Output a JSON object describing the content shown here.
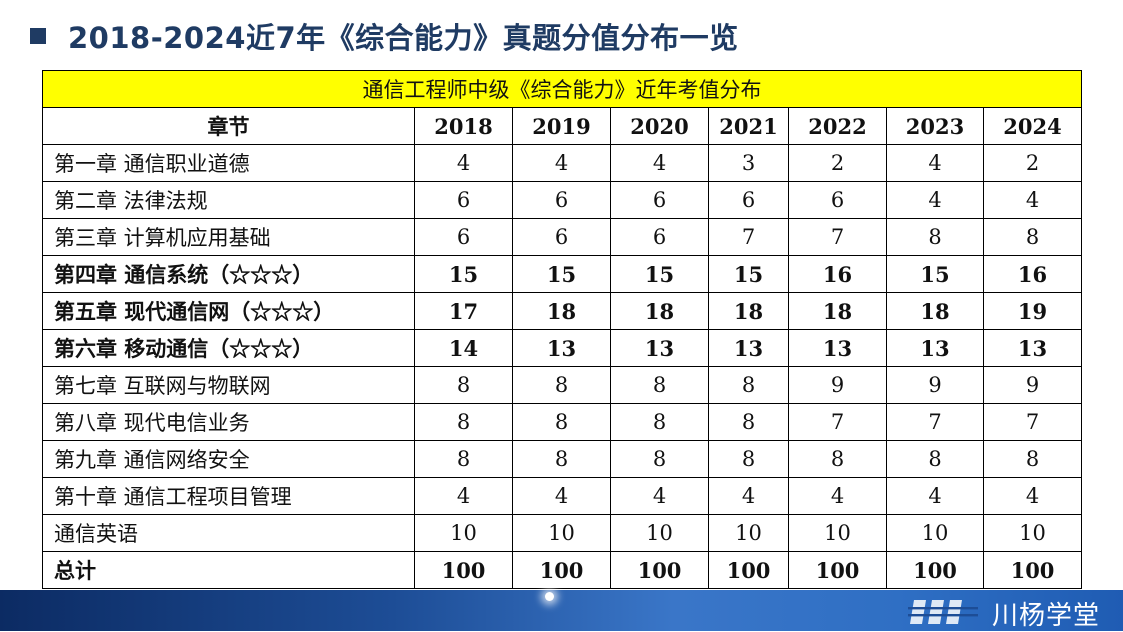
{
  "title": "2018-2024近7年《综合能力》真题分值分布一览",
  "table": {
    "caption": "通信工程师中级《综合能力》近年考值分布",
    "header": [
      "章节",
      "2018",
      "2019",
      "2020",
      "2021",
      "2022",
      "2023",
      "2024"
    ],
    "rows": [
      {
        "chapter": "第一章  通信职业道德",
        "values": [
          "4",
          "4",
          "4",
          "3",
          "2",
          "4",
          "2"
        ],
        "bold": false
      },
      {
        "chapter": "第二章  法律法规",
        "values": [
          "6",
          "6",
          "6",
          "6",
          "6",
          "4",
          "4"
        ],
        "bold": false
      },
      {
        "chapter": "第三章  计算机应用基础",
        "values": [
          "6",
          "6",
          "6",
          "7",
          "7",
          "8",
          "8"
        ],
        "bold": false
      },
      {
        "chapter": "第四章  通信系统（☆☆☆）",
        "values": [
          "15",
          "15",
          "15",
          "15",
          "16",
          "15",
          "16"
        ],
        "bold": true
      },
      {
        "chapter": "第五章  现代通信网（☆☆☆）",
        "values": [
          "17",
          "18",
          "18",
          "18",
          "18",
          "18",
          "19"
        ],
        "bold": true
      },
      {
        "chapter": "第六章  移动通信（☆☆☆）",
        "values": [
          "14",
          "13",
          "13",
          "13",
          "13",
          "13",
          "13"
        ],
        "bold": true
      },
      {
        "chapter": "第七章  互联网与物联网",
        "values": [
          "8",
          "8",
          "8",
          "8",
          "9",
          "9",
          "9"
        ],
        "bold": false
      },
      {
        "chapter": "第八章  现代电信业务",
        "values": [
          "8",
          "8",
          "8",
          "8",
          "7",
          "7",
          "7"
        ],
        "bold": false
      },
      {
        "chapter": "第九章  通信网络安全",
        "values": [
          "8",
          "8",
          "8",
          "8",
          "8",
          "8",
          "8"
        ],
        "bold": false
      },
      {
        "chapter": "第十章  通信工程项目管理",
        "values": [
          "4",
          "4",
          "4",
          "4",
          "4",
          "4",
          "4"
        ],
        "bold": false
      },
      {
        "chapter": "通信英语",
        "values": [
          "10",
          "10",
          "10",
          "10",
          "10",
          "10",
          "10"
        ],
        "bold": false
      },
      {
        "chapter": "总计",
        "values": [
          "100",
          "100",
          "100",
          "100",
          "100",
          "100",
          "100"
        ],
        "bold": true
      }
    ]
  },
  "footer": {
    "brand": "川杨学堂",
    "logo_icon": "brand-logo-icon"
  },
  "colors": {
    "title": "#1f3b63",
    "caption_bg": "#ffff00",
    "footer_band": "#1d4d96"
  }
}
